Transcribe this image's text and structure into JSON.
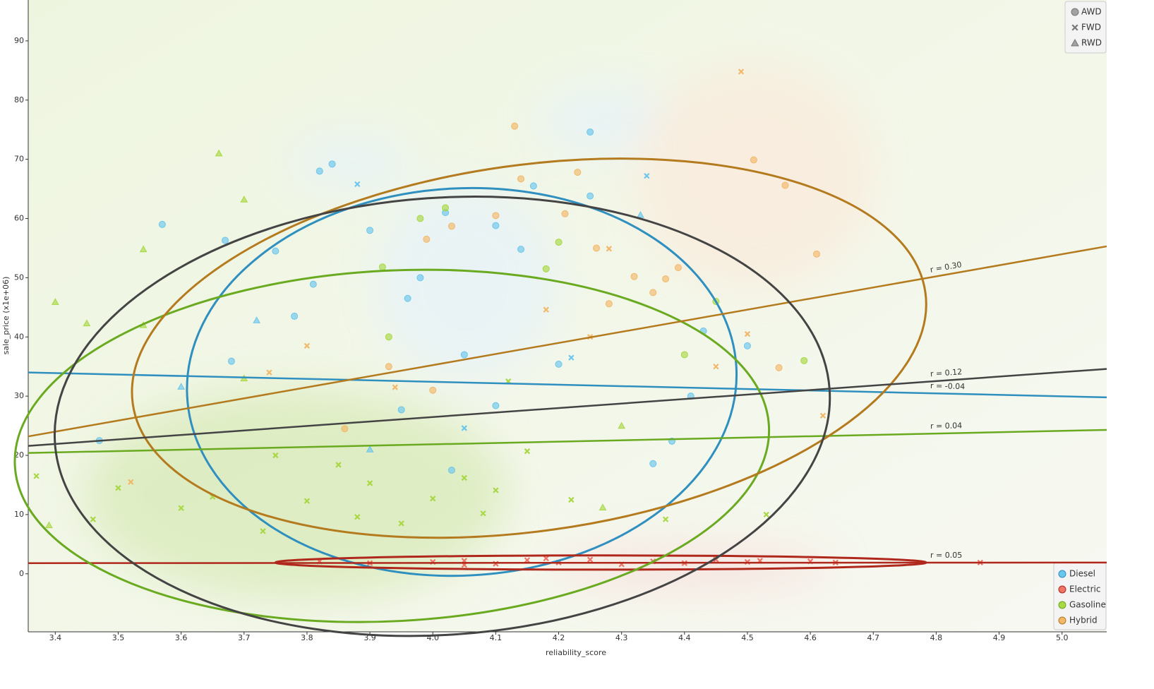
{
  "chart_data": {
    "type": "scatter",
    "x_label": "reliability_score",
    "y_label": "sale_price (x1e+06)",
    "xlim": [
      3.357,
      5.071
    ],
    "ylim": [
      -9.8,
      96.9
    ],
    "xticks": [
      3.4,
      3.5,
      3.6,
      3.7,
      3.8,
      3.9,
      {
        "value": 4.0,
        "label": "4.0"
      },
      4.1,
      4.2,
      4.3,
      4.4,
      4.5,
      4.6,
      4.7,
      4.8,
      4.9,
      {
        "value": 5.0,
        "label": "5.0"
      }
    ],
    "yticks": [
      0,
      10,
      20,
      30,
      40,
      50,
      60,
      70,
      80,
      90
    ],
    "shape_legend": [
      {
        "name": "AWD",
        "shape": "circle"
      },
      {
        "name": "FWD",
        "shape": "cross"
      },
      {
        "name": "RWD",
        "shape": "triangle"
      }
    ],
    "series": [
      {
        "name": "Diesel",
        "color": "#6cc6ec",
        "line_color": "#2f8fbf",
        "x": [
          3.47,
          3.57,
          3.67,
          3.75,
          3.81,
          3.82,
          3.84,
          3.88,
          3.9,
          3.96,
          3.98,
          4.02,
          4.1,
          4.16,
          4.25,
          4.25,
          4.14,
          4.5,
          4.43,
          4.38,
          4.35,
          4.41,
          4.2,
          4.05,
          3.78,
          3.68,
          3.72,
          3.6,
          4.34,
          4.33,
          4.03,
          4.1,
          3.95,
          4.22,
          3.9,
          4.05
        ],
        "values": [
          22.5,
          59,
          56.3,
          54.5,
          48.9,
          68,
          69.2,
          65.8,
          58,
          46.5,
          50,
          61,
          58.8,
          65.5,
          74.6,
          63.8,
          54.8,
          38.5,
          41,
          22.4,
          18.6,
          30,
          35.4,
          37,
          43.5,
          35.9,
          42.8,
          31.6,
          67.2,
          60.6,
          17.5,
          28.4,
          27.7,
          36.5,
          21,
          24.6
        ],
        "drive": [
          "AWD",
          "AWD",
          "AWD",
          "AWD",
          "AWD",
          "AWD",
          "AWD",
          "FWD",
          "AWD",
          "AWD",
          "AWD",
          "AWD",
          "AWD",
          "AWD",
          "AWD",
          "AWD",
          "AWD",
          "AWD",
          "AWD",
          "AWD",
          "AWD",
          "AWD",
          "AWD",
          "AWD",
          "AWD",
          "AWD",
          "RWD",
          "RWD",
          "FWD",
          "RWD",
          "AWD",
          "AWD",
          "AWD",
          "FWD",
          "RWD",
          "FWD"
        ],
        "fit": {
          "x": [
            3.357,
            5.071
          ],
          "values": [
            34.0,
            29.8
          ],
          "label": "r = -0.04"
        },
        "ellipse": {
          "cx": 4.046,
          "cy": 32.4,
          "rx": 0.437,
          "ry": 32.7,
          "angle": -3
        }
      },
      {
        "name": "Electric",
        "color": "#ee7468",
        "line_color": "#b0281c",
        "x": [
          3.82,
          3.9,
          4.0,
          4.05,
          4.1,
          4.15,
          4.2,
          4.25,
          4.3,
          4.35,
          4.4,
          4.45,
          4.5,
          4.52,
          4.6,
          4.64,
          4.87,
          4.05,
          4.18
        ],
        "values": [
          2.1,
          1.8,
          2.0,
          2.2,
          1.7,
          2.3,
          1.9,
          2.4,
          1.6,
          2.1,
          1.8,
          2.4,
          2.0,
          2.2,
          2.1,
          1.9,
          1.9,
          1.5,
          2.6
        ],
        "drive": [
          "FWD",
          "FWD",
          "FWD",
          "FWD",
          "FWD",
          "FWD",
          "FWD",
          "FWD",
          "FWD",
          "FWD",
          "FWD",
          "FWD",
          "FWD",
          "FWD",
          "FWD",
          "FWD",
          "FWD",
          "FWD",
          "FWD"
        ],
        "fit": {
          "x": [
            3.357,
            5.071
          ],
          "values": [
            1.8,
            1.9
          ],
          "label": "r = 0.05"
        },
        "ellipse": {
          "cx": 4.267,
          "cy": 1.9,
          "rx": 0.517,
          "ry": 1.2,
          "angle": 0
        }
      },
      {
        "name": "Gasoline",
        "color": "#a8d844",
        "line_color": "#6aaa20",
        "x": [
          3.37,
          3.4,
          3.39,
          3.45,
          3.46,
          3.5,
          3.54,
          3.54,
          3.6,
          3.66,
          3.7,
          3.7,
          3.75,
          3.8,
          3.85,
          3.88,
          3.9,
          3.92,
          3.95,
          3.98,
          4.02,
          4.0,
          4.05,
          4.08,
          4.1,
          4.15,
          4.2,
          4.18,
          4.22,
          4.27,
          4.3,
          4.37,
          4.45,
          4.53,
          4.59,
          4.4,
          3.73,
          3.65,
          3.93,
          4.12
        ],
        "values": [
          16.5,
          45.9,
          8.2,
          42.3,
          9.2,
          14.5,
          54.8,
          42,
          11.1,
          71,
          63.2,
          33,
          20,
          12.3,
          18.4,
          9.6,
          15.3,
          51.8,
          8.5,
          60,
          61.8,
          12.7,
          16.2,
          10.2,
          14.1,
          20.7,
          56,
          51.5,
          12.5,
          11.2,
          25,
          9.2,
          46,
          10,
          36,
          37,
          7.2,
          13,
          40,
          32.5
        ],
        "drive": [
          "FWD",
          "RWD",
          "RWD",
          "RWD",
          "FWD",
          "FWD",
          "RWD",
          "RWD",
          "FWD",
          "RWD",
          "RWD",
          "RWD",
          "FWD",
          "FWD",
          "FWD",
          "FWD",
          "FWD",
          "AWD",
          "FWD",
          "AWD",
          "AWD",
          "FWD",
          "FWD",
          "FWD",
          "FWD",
          "FWD",
          "AWD",
          "AWD",
          "FWD",
          "RWD",
          "RWD",
          "FWD",
          "AWD",
          "FWD",
          "AWD",
          "AWD",
          "FWD",
          "FWD",
          "AWD",
          "FWD"
        ],
        "fit": {
          "x": [
            3.357,
            5.071
          ],
          "values": [
            20.4,
            24.3
          ],
          "label": "r = 0.04"
        },
        "ellipse": {
          "cx": 3.935,
          "cy": 21.6,
          "rx": 0.6,
          "ry": 29.6,
          "angle": -3
        }
      },
      {
        "name": "Hybrid",
        "color": "#f2b86a",
        "line_color": "#b47a1e",
        "x": [
          3.52,
          3.99,
          4.03,
          4.1,
          4.13,
          4.14,
          4.23,
          4.21,
          4.26,
          4.28,
          4.32,
          4.37,
          4.39,
          4.49,
          4.51,
          4.56,
          4.61,
          4.55,
          4.62,
          4.5,
          4.35,
          4.28,
          4.18,
          4.0,
          3.93,
          3.8,
          3.74,
          3.86,
          4.25,
          4.45,
          3.94
        ],
        "values": [
          15.5,
          56.5,
          58.7,
          60.5,
          75.6,
          66.7,
          67.8,
          60.8,
          55,
          54.9,
          50.2,
          49.8,
          51.7,
          84.8,
          69.9,
          65.6,
          54,
          34.8,
          26.7,
          40.5,
          47.5,
          45.6,
          44.6,
          31,
          35,
          38.5,
          34,
          24.5,
          40,
          35,
          31.5
        ],
        "drive": [
          "FWD",
          "AWD",
          "AWD",
          "AWD",
          "AWD",
          "AWD",
          "AWD",
          "AWD",
          "AWD",
          "FWD",
          "AWD",
          "AWD",
          "AWD",
          "FWD",
          "AWD",
          "AWD",
          "AWD",
          "AWD",
          "FWD",
          "FWD",
          "AWD",
          "AWD",
          "FWD",
          "AWD",
          "AWD",
          "FWD",
          "FWD",
          "AWD",
          "FWD",
          "FWD",
          "FWD"
        ],
        "fit": {
          "x": [
            3.357,
            5.071
          ],
          "values": [
            23.2,
            55.3
          ],
          "label": "r = 0.30"
        },
        "ellipse": {
          "cx": 4.153,
          "cy": 38.1,
          "rx": 0.636,
          "ry": 30.9,
          "angle": -8
        }
      }
    ],
    "overall": {
      "line_color": "#444444",
      "fit": {
        "x": [
          3.357,
          5.071
        ],
        "values": [
          21.6,
          34.6
        ],
        "label": "r = 0.12"
      },
      "ellipse": {
        "cx": 4.015,
        "cy": 26.6,
        "rx": 0.617,
        "ry": 36.9,
        "angle": -4
      }
    }
  }
}
